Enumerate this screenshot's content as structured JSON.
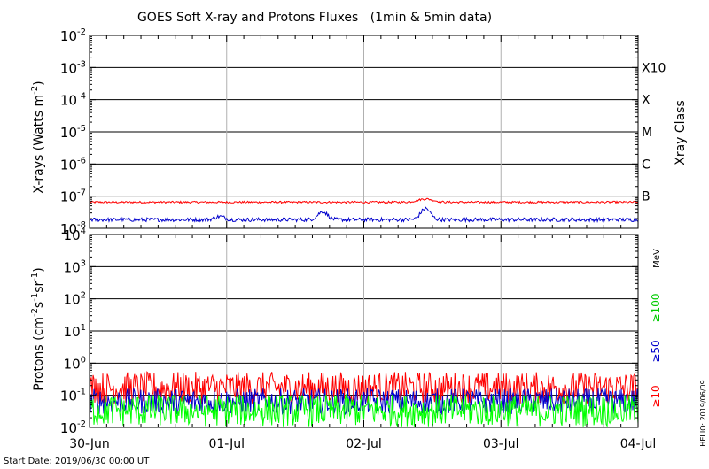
{
  "chart_data": [
    {
      "type": "line",
      "title": "GOES Soft X-ray and Protons Fluxes   (1min & 5min data)",
      "ylabel_main": "X-rays (Watts m",
      "ylabel_sup": "-2",
      "ylabel_close": ")",
      "y_scale": "log",
      "ylim": [
        1e-08,
        0.01
      ],
      "yticks": [
        {
          "base": "10",
          "exp": "-8",
          "value": 1e-08
        },
        {
          "base": "10",
          "exp": "-7",
          "value": 1e-07
        },
        {
          "base": "10",
          "exp": "-6",
          "value": 1e-06
        },
        {
          "base": "10",
          "exp": "-5",
          "value": 1e-05
        },
        {
          "base": "10",
          "exp": "-4",
          "value": 0.0001
        },
        {
          "base": "10",
          "exp": "-3",
          "value": 0.001
        },
        {
          "base": "10",
          "exp": "-2",
          "value": 0.01
        }
      ],
      "right_axis_label": "Xray Class",
      "class_labels": [
        {
          "label": "B",
          "value": 1e-07
        },
        {
          "label": "C",
          "value": 1e-06
        },
        {
          "label": "M",
          "value": 1e-05
        },
        {
          "label": "X",
          "value": 0.0001
        },
        {
          "label": "X10",
          "value": 0.001
        }
      ],
      "grid": true,
      "x_range_days": [
        0,
        4
      ],
      "series": [
        {
          "color": "#ff0000",
          "base_value": 6.5e-08,
          "noise": 0.03,
          "bumps": [
            [
              2.45,
              0.08,
              0.1
            ]
          ]
        },
        {
          "color": "#0000cc",
          "base_value": 1.85e-08,
          "noise": 0.06,
          "bumps": [
            [
              1.7,
              0.05,
              0.25
            ],
            [
              2.45,
              0.05,
              0.35
            ],
            [
              0.95,
              0.05,
              0.1
            ]
          ]
        }
      ]
    },
    {
      "type": "line",
      "ylabel_main": "Protons (cm",
      "ylabel_sup1": "-2",
      "ylabel_mid1": "s",
      "ylabel_sup2": "-1",
      "ylabel_mid2": "sr",
      "ylabel_sup3": "-1",
      "ylabel_close": ")",
      "y_scale": "log",
      "ylim": [
        0.01,
        10000
      ],
      "yticks": [
        {
          "base": "10",
          "exp": "-2",
          "value": 0.01
        },
        {
          "base": "10",
          "exp": "-1",
          "value": 0.1
        },
        {
          "base": "10",
          "exp": "0",
          "value": 1
        },
        {
          "base": "10",
          "exp": "1",
          "value": 10
        },
        {
          "base": "10",
          "exp": "2",
          "value": 100
        },
        {
          "base": "10",
          "exp": "3",
          "value": 1000
        },
        {
          "base": "10",
          "exp": "4",
          "value": 10000
        }
      ],
      "threshold": 10,
      "grid": true,
      "x_range_days": [
        0,
        4
      ],
      "energy_unit": "MeV",
      "series": [
        {
          "name": "≥10",
          "color": "#ff0000",
          "base_value": 0.17,
          "noise": 0.5
        },
        {
          "name": "≥50",
          "color": "#0000cc",
          "base_value": 0.065,
          "noise": 0.4
        },
        {
          "name": "≥100",
          "color": "#00ff00",
          "base_value": 0.034,
          "noise": 0.5
        }
      ]
    }
  ],
  "x_axis": {
    "tick_labels": [
      "30-Jun",
      "01-Jul",
      "02-Jul",
      "03-Jul",
      "04-Jul"
    ],
    "tick_days": [
      0,
      1,
      2,
      3,
      4
    ]
  },
  "footer": {
    "start_date": "Start Date: 2019/06/30 00:00 UT",
    "credit": "HELIO: 2019/06/09"
  }
}
